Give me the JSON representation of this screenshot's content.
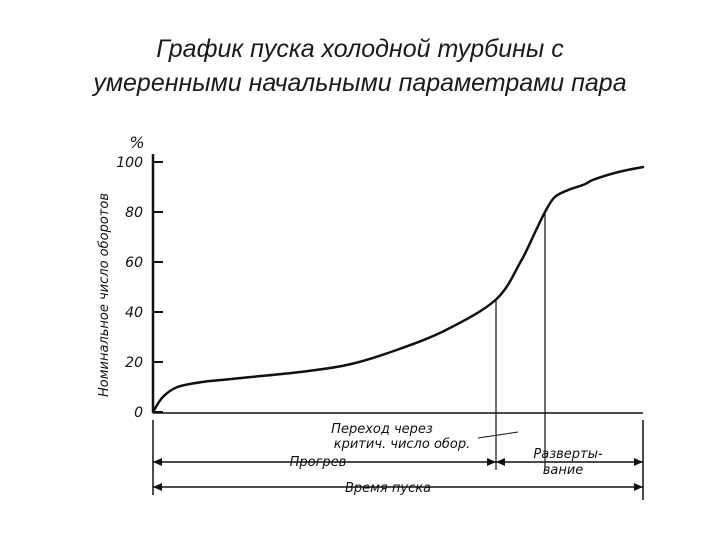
{
  "title_lines": [
    "График пуска холодной турбины с",
    "умеренными  начальными параметрами пара"
  ],
  "chart_data": {
    "type": "line",
    "title": "График пуска холодной турбины с умеренными  начальными параметрами пара",
    "ylabel": "Номинальное число оборотов",
    "yunit": "%",
    "ylim": [
      0,
      100
    ],
    "yticks": [
      0,
      20,
      40,
      60,
      80,
      100
    ],
    "grid": false,
    "xrange": [
      0,
      1
    ],
    "series": [
      {
        "x": [
          0,
          0.02,
          0.05,
          0.1,
          0.15,
          0.2,
          0.3,
          0.4,
          0.5,
          0.6,
          0.7,
          0.75,
          0.78,
          0.8,
          0.82,
          0.85,
          0.88,
          0.9,
          0.95,
          1.0
        ],
        "y": [
          0,
          6,
          10,
          12,
          13,
          14,
          16,
          19,
          25,
          33,
          45,
          60,
          72,
          80,
          86,
          89,
          91,
          93,
          96,
          98
        ]
      }
    ],
    "markers": {
      "critical_x": 0.7,
      "runup_x": 0.8
    },
    "annotations": {
      "critical": [
        "Переход через",
        "критич. число обор."
      ],
      "heating": "Прогрев",
      "runup": [
        "Разверты-",
        "вание"
      ],
      "total": "Время пуска"
    },
    "colors": {
      "line": "#111111",
      "text": "#1a1a1a"
    }
  }
}
